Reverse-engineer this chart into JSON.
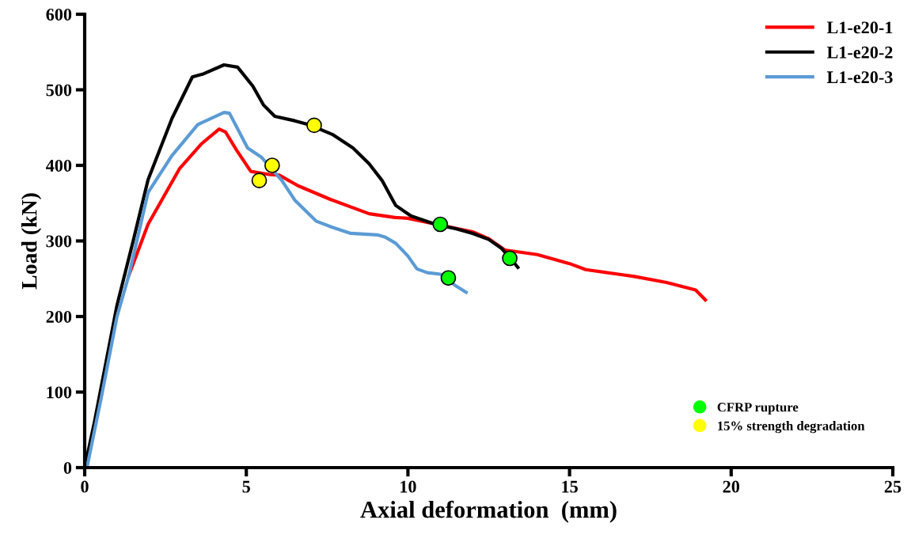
{
  "chart_data": {
    "type": "line",
    "xlabel": "Axial deformation  (mm)",
    "ylabel": "Load (kN)",
    "xlim": [
      0,
      25
    ],
    "ylim": [
      0,
      600
    ],
    "xticks": [
      0,
      5,
      10,
      15,
      20,
      25
    ],
    "yticks": [
      0,
      100,
      200,
      300,
      400,
      500,
      600
    ],
    "grid": false,
    "legend": "top right",
    "marker": "none",
    "line_style": "solid",
    "series": [
      {
        "name": "L1-e20-1",
        "color": "#ff0000",
        "x": [
          1.37,
          1.96,
          2.94,
          3.6,
          4.16,
          4.36,
          4.7,
          5.14,
          5.7,
          6.02,
          6.6,
          7.6,
          8.8,
          9.6,
          10.0,
          12.0,
          12.5,
          13.0,
          14.0,
          15.0,
          15.5,
          16.5,
          17.0,
          18.0,
          18.9,
          19.2
        ],
        "values": [
          255,
          322,
          396,
          428,
          448,
          444,
          420,
          392,
          388,
          387,
          373,
          355,
          336,
          331,
          330,
          312,
          303,
          288,
          282,
          270,
          262,
          256,
          253,
          245,
          235,
          222
        ]
      },
      {
        "name": "L1-e20-2",
        "color": "#000000",
        "x": [
          0.0,
          0.3,
          1.0,
          1.5,
          1.96,
          2.7,
          3.33,
          3.67,
          4.31,
          4.73,
          5.2,
          5.53,
          5.88,
          6.5,
          6.93,
          7.66,
          8.3,
          8.8,
          9.2,
          9.62,
          10.1,
          10.85,
          11.5,
          12.0,
          12.5,
          12.9,
          13.15,
          13.4
        ],
        "values": [
          0,
          60,
          215,
          300,
          381,
          462,
          517,
          521,
          533,
          530,
          505,
          480,
          465,
          459,
          454,
          441,
          423,
          402,
          380,
          347,
          333,
          322,
          316,
          310,
          302,
          290,
          278,
          265
        ]
      },
      {
        "name": "L1-e20-3",
        "color": "#5b9bd5",
        "x": [
          0.07,
          0.5,
          1.0,
          1.37,
          1.96,
          2.7,
          3.5,
          4.31,
          4.48,
          5.04,
          5.46,
          6.1,
          6.5,
          7.17,
          7.66,
          8.23,
          9.05,
          9.3,
          9.62,
          10.0,
          10.28,
          10.6,
          11.0,
          11.5,
          11.8
        ],
        "values": [
          0,
          90,
          200,
          255,
          364,
          413,
          454,
          470,
          469,
          423,
          411,
          380,
          354,
          326,
          318,
          310,
          308,
          305,
          297,
          280,
          263,
          258,
          256,
          240,
          232
        ]
      },
      {
        "name": "CFRP rupture",
        "type": "scatter",
        "marker": "circle",
        "color": "#00ff00",
        "x": [
          11.0,
          13.15,
          11.25
        ],
        "values": [
          322,
          277,
          251
        ]
      },
      {
        "name": "15% strength degradation",
        "type": "scatter",
        "marker": "circle",
        "color": "#ffff00",
        "x": [
          5.4,
          7.1,
          5.8
        ],
        "values": [
          380,
          453,
          400
        ]
      }
    ]
  }
}
